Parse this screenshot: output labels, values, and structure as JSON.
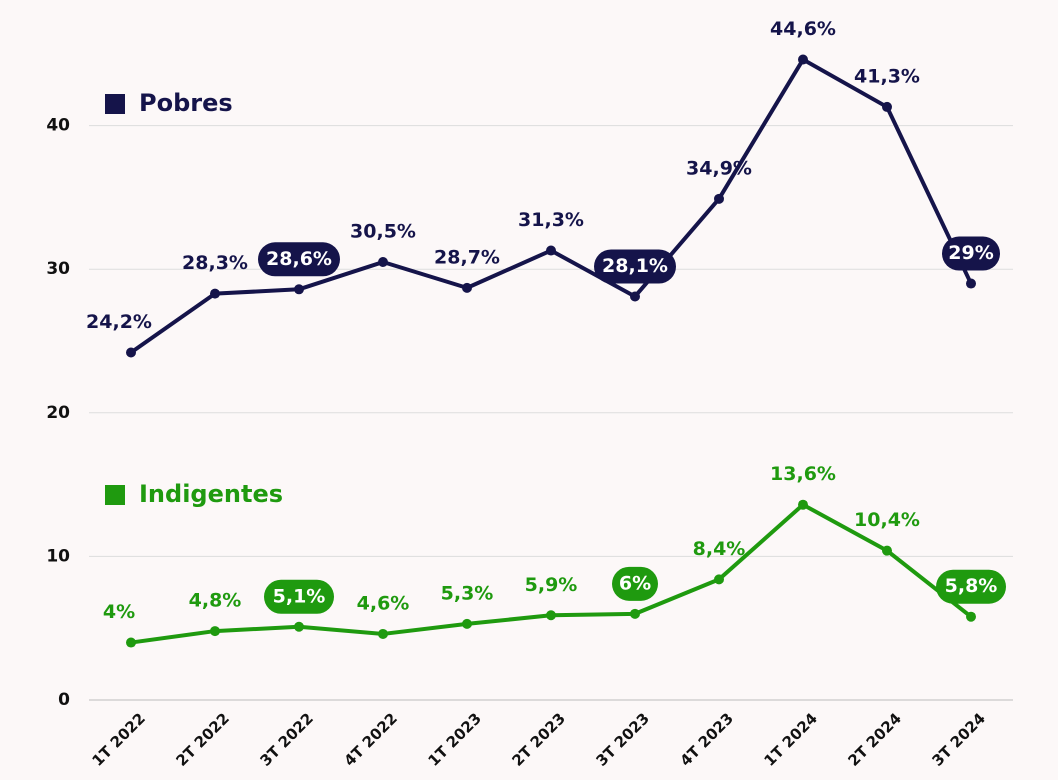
{
  "chart_data": {
    "type": "line",
    "categories": [
      "1T 2022",
      "2T 2022",
      "3T 2022",
      "4T 2022",
      "1T 2023",
      "2T 2023",
      "3T 2023",
      "4T 2023",
      "1T 2024",
      "2T 2024",
      "3T 2024"
    ],
    "series": [
      {
        "name": "Pobres",
        "color": "#15144a",
        "values": [
          24.2,
          28.3,
          28.6,
          30.5,
          28.7,
          31.3,
          28.1,
          34.9,
          44.6,
          41.3,
          29
        ],
        "value_labels": [
          "24,2%",
          "28,3%",
          "28,6%",
          "30,5%",
          "28,7%",
          "31,3%",
          "28,1%",
          "34,9%",
          "44,6%",
          "41,3%",
          "29%"
        ],
        "boxed_labels": [
          2,
          6,
          10
        ]
      },
      {
        "name": "Indigentes",
        "color": "#1f9a0f",
        "values": [
          4,
          4.8,
          5.1,
          4.6,
          5.3,
          5.9,
          6,
          8.4,
          13.6,
          10.4,
          5.8
        ],
        "value_labels": [
          "4%",
          "4,8%",
          "5,1%",
          "4,6%",
          "5,3%",
          "5,9%",
          "6%",
          "8,4%",
          "13,6%",
          "10,4%",
          "5,8%"
        ],
        "boxed_labels": [
          2,
          6,
          10
        ]
      }
    ],
    "ylim": [
      0,
      48
    ],
    "yticks": [
      0,
      10,
      20,
      30,
      40
    ],
    "grid": true
  }
}
